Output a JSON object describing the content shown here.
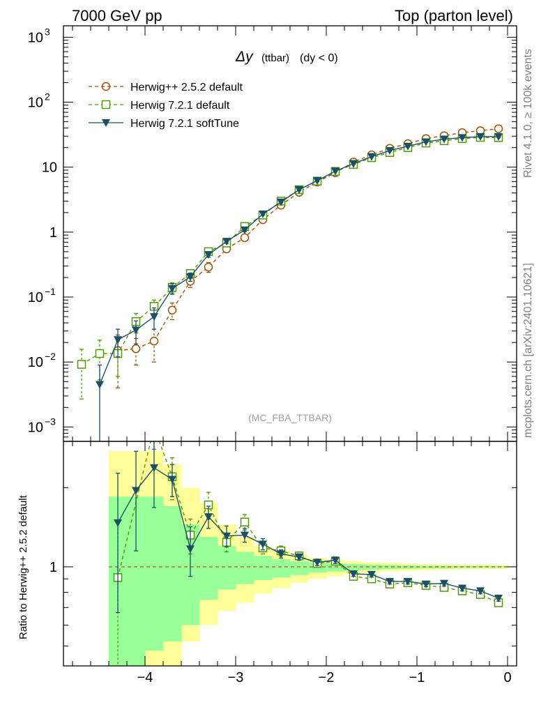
{
  "header": {
    "left": "7000 GeV pp",
    "right": "Top (parton level)"
  },
  "side_labels": {
    "rivet": "Rivet 4.1.0, ≥ 100k events",
    "mcplots": "mcplots.cern.ch [arXiv:2401.10621]"
  },
  "chart_data": [
    {
      "type": "line",
      "title": "Δy",
      "title_suffix": "(ttbar)",
      "subtitle": "(dy < 0)",
      "annotation": "(MC_FBA_TTBAR)",
      "yscale": "log",
      "ylim": [
        0.0006,
        1500
      ],
      "xlim": [
        -4.9,
        0.1
      ],
      "yticks": [
        {
          "v": 0.001,
          "base": "10",
          "exp": "−3"
        },
        {
          "v": 0.01,
          "base": "10",
          "exp": "−2"
        },
        {
          "v": 0.1,
          "base": "10",
          "exp": "−1"
        },
        {
          "v": 1,
          "base": "1",
          "exp": ""
        },
        {
          "v": 10,
          "base": "10",
          "exp": ""
        },
        {
          "v": 100,
          "base": "10",
          "exp": "2"
        },
        {
          "v": 1000,
          "base": "10",
          "exp": "3"
        }
      ],
      "legend_position": "top-left",
      "series": [
        {
          "name": "Herwig++ 2.5.2 default",
          "color": "#a64d00",
          "marker": "circle-open",
          "dash": true,
          "points": [
            [
              -4.3,
              0.015
            ],
            [
              -4.1,
              0.016
            ],
            [
              -3.9,
              0.021
            ],
            [
              -3.7,
              0.063
            ],
            [
              -3.5,
              0.175
            ],
            [
              -3.3,
              0.29
            ],
            [
              -3.1,
              0.55
            ],
            [
              -2.9,
              0.82
            ],
            [
              -2.7,
              1.55
            ],
            [
              -2.5,
              2.6
            ],
            [
              -2.3,
              4.1
            ],
            [
              -2.1,
              5.9
            ],
            [
              -1.9,
              8.2
            ],
            [
              -1.7,
              12.0
            ],
            [
              -1.5,
              15.5
            ],
            [
              -1.3,
              19.5
            ],
            [
              -1.1,
              23.0
            ],
            [
              -0.9,
              27.5
            ],
            [
              -0.7,
              30.5
            ],
            [
              -0.5,
              34.0
            ],
            [
              -0.3,
              36.5
            ],
            [
              -0.1,
              39.0
            ]
          ],
          "err": [
            0.011,
            0.007,
            0.011,
            0.018,
            0.035,
            0.05,
            0.06,
            0.07,
            0.1,
            0.15,
            0.2,
            0.25,
            0.3,
            0.35,
            0.4,
            0.45,
            0.5,
            0.55,
            0.6,
            0.65,
            0.7,
            0.75
          ]
        },
        {
          "name": "Herwig 7.2.1 default",
          "color": "#4c9a00",
          "marker": "square-open",
          "dash": true,
          "points": [
            [
              -4.7,
              0.0092
            ],
            [
              -4.5,
              0.0135
            ],
            [
              -4.3,
              0.0135
            ],
            [
              -4.1,
              0.042
            ],
            [
              -3.9,
              0.072
            ],
            [
              -3.7,
              0.14
            ],
            [
              -3.5,
              0.23
            ],
            [
              -3.3,
              0.5
            ],
            [
              -3.1,
              0.68
            ],
            [
              -2.9,
              1.22
            ],
            [
              -2.7,
              1.83
            ],
            [
              -2.5,
              3.0
            ],
            [
              -2.3,
              4.5
            ],
            [
              -2.1,
              6.1
            ],
            [
              -1.9,
              8.6
            ],
            [
              -1.7,
              11.0
            ],
            [
              -1.5,
              14.0
            ],
            [
              -1.3,
              16.8
            ],
            [
              -1.1,
              20.0
            ],
            [
              -0.9,
              23.5
            ],
            [
              -0.7,
              25.5
            ],
            [
              -0.5,
              27.5
            ],
            [
              -0.3,
              28.7
            ],
            [
              -0.1,
              28.5
            ]
          ],
          "err": [
            0.0065,
            0.0082,
            0.0075,
            0.014,
            0.018,
            0.025,
            0.03,
            0.04,
            0.05,
            0.06,
            0.08,
            0.1,
            0.15,
            0.2,
            0.25,
            0.3,
            0.35,
            0.4,
            0.45,
            0.5,
            0.55,
            0.6,
            0.65,
            0.7
          ]
        },
        {
          "name": "Herwig 7.2.1 softTune",
          "color": "#1a4f66",
          "marker": "triangle-down",
          "dash": false,
          "points": [
            [
              -4.5,
              0.0045
            ],
            [
              -4.3,
              0.022
            ],
            [
              -4.1,
              0.031
            ],
            [
              -3.9,
              0.05
            ],
            [
              -3.7,
              0.135
            ],
            [
              -3.5,
              0.205
            ],
            [
              -3.3,
              0.45
            ],
            [
              -3.1,
              0.72
            ],
            [
              -2.9,
              1.08
            ],
            [
              -2.7,
              1.9
            ],
            [
              -2.5,
              2.9
            ],
            [
              -2.3,
              4.5
            ],
            [
              -2.1,
              6.2
            ],
            [
              -1.9,
              8.7
            ],
            [
              -1.7,
              11.3
            ],
            [
              -1.5,
              14.5
            ],
            [
              -1.3,
              18.0
            ],
            [
              -1.1,
              21.0
            ],
            [
              -0.9,
              24.5
            ],
            [
              -0.7,
              27.0
            ],
            [
              -0.5,
              28.5
            ],
            [
              -0.3,
              29.5
            ],
            [
              -0.1,
              29.5
            ]
          ],
          "err": [
            0.0045,
            0.01,
            0.012,
            0.018,
            0.025,
            0.03,
            0.04,
            0.05,
            0.06,
            0.08,
            0.1,
            0.15,
            0.2,
            0.25,
            0.3,
            0.35,
            0.4,
            0.45,
            0.5,
            0.55,
            0.6,
            0.65,
            0.7
          ]
        }
      ]
    },
    {
      "type": "line",
      "ylabel": "Ratio to Herwig++ 2.5.2 default",
      "yscale": "log",
      "ylim": [
        0.42,
        3.0
      ],
      "xlim": [
        -4.9,
        0.1
      ],
      "ytick_label": "1",
      "xticks": [
        {
          "v": -4,
          "label": "−4"
        },
        {
          "v": -3,
          "label": "−3"
        },
        {
          "v": -2,
          "label": "−2"
        },
        {
          "v": -1,
          "label": "−1"
        },
        {
          "v": 0,
          "label": "0"
        }
      ],
      "bands": {
        "green_color": "#99ff99",
        "yellow_color": "#ffff99",
        "x_edges": [
          -4.4,
          -4.2,
          -4.0,
          -3.8,
          -3.6,
          -3.4,
          -3.2,
          -3.0,
          -2.8,
          -2.6,
          -2.4,
          -2.2,
          -2.0,
          -1.8,
          -1.6,
          -1.4,
          -1.2,
          -1.0,
          -0.8,
          -0.6,
          -0.4,
          -0.2,
          0.0
        ],
        "green": [
          [
            0.42,
            1.85
          ],
          [
            0.42,
            1.85
          ],
          [
            0.48,
            1.85
          ],
          [
            0.52,
            1.7
          ],
          [
            0.6,
            1.45
          ],
          [
            0.75,
            1.3
          ],
          [
            0.82,
            1.2
          ],
          [
            0.86,
            1.14
          ],
          [
            0.89,
            1.1
          ],
          [
            0.91,
            1.07
          ],
          [
            0.93,
            1.05
          ],
          [
            0.95,
            1.04
          ],
          [
            0.96,
            1.03
          ],
          [
            0.97,
            1.025
          ],
          [
            0.975,
            1.02
          ],
          [
            0.98,
            1.015
          ],
          [
            0.983,
            1.012
          ],
          [
            0.986,
            1.01
          ],
          [
            0.988,
            1.01
          ],
          [
            0.99,
            1.008
          ],
          [
            0.991,
            1.008
          ],
          [
            0.992,
            1.007
          ]
        ],
        "yellow": [
          [
            0.42,
            2.75
          ],
          [
            0.42,
            2.75
          ],
          [
            0.42,
            2.75
          ],
          [
            0.42,
            2.45
          ],
          [
            0.52,
            2.0
          ],
          [
            0.6,
            1.75
          ],
          [
            0.68,
            1.45
          ],
          [
            0.73,
            1.3
          ],
          [
            0.79,
            1.2
          ],
          [
            0.83,
            1.15
          ],
          [
            0.87,
            1.11
          ],
          [
            0.9,
            1.08
          ],
          [
            0.92,
            1.06
          ],
          [
            0.94,
            1.05
          ],
          [
            0.95,
            1.04
          ],
          [
            0.96,
            1.035
          ],
          [
            0.965,
            1.03
          ],
          [
            0.97,
            1.025
          ],
          [
            0.975,
            1.022
          ],
          [
            0.978,
            1.02
          ],
          [
            0.98,
            1.018
          ],
          [
            0.982,
            1.016
          ]
        ]
      },
      "series": [
        {
          "name": "Herwig 7.2.1 default",
          "color": "#4c9a00",
          "marker": "square-open",
          "dash": true,
          "points": [
            [
              -4.3,
              0.91
            ],
            [
              -3.9,
              3.4
            ],
            [
              -3.7,
              2.2
            ],
            [
              -3.5,
              1.32
            ],
            [
              -3.3,
              1.72
            ],
            [
              -3.1,
              1.24
            ],
            [
              -2.9,
              1.48
            ],
            [
              -2.7,
              1.18
            ],
            [
              -2.5,
              1.15
            ],
            [
              -2.3,
              1.1
            ],
            [
              -2.1,
              1.03
            ],
            [
              -1.9,
              1.05
            ],
            [
              -1.7,
              0.92
            ],
            [
              -1.5,
              0.9
            ],
            [
              -1.3,
              0.86
            ],
            [
              -1.1,
              0.87
            ],
            [
              -0.9,
              0.85
            ],
            [
              -0.7,
              0.835
            ],
            [
              -0.5,
              0.81
            ],
            [
              -0.3,
              0.785
            ],
            [
              -0.1,
              0.73
            ]
          ],
          "err": [
            0.6,
            0.6,
            0.4,
            0.2,
            0.2,
            0.1,
            0.1,
            0.06,
            0.05,
            0.04,
            0.03,
            0.03,
            0.03,
            0.02,
            0.02,
            0.02,
            0.02,
            0.02,
            0.02,
            0.02,
            0.02
          ]
        },
        {
          "name": "Herwig 7.2.1 softTune",
          "color": "#1a4f66",
          "marker": "triangle-down",
          "dash": false,
          "points": [
            [
              -4.3,
              1.47
            ],
            [
              -4.1,
              1.95
            ],
            [
              -3.9,
              2.38
            ],
            [
              -3.7,
              2.15
            ],
            [
              -3.5,
              1.17
            ],
            [
              -3.3,
              1.55
            ],
            [
              -3.1,
              1.31
            ],
            [
              -2.9,
              1.32
            ],
            [
              -2.7,
              1.22
            ],
            [
              -2.5,
              1.12
            ],
            [
              -2.3,
              1.09
            ],
            [
              -2.1,
              1.04
            ],
            [
              -1.9,
              1.06
            ],
            [
              -1.7,
              0.94
            ],
            [
              -1.5,
              0.935
            ],
            [
              -1.3,
              0.88
            ],
            [
              -1.1,
              0.88
            ],
            [
              -0.9,
              0.86
            ],
            [
              -0.7,
              0.865
            ],
            [
              -0.5,
              0.83
            ],
            [
              -0.3,
              0.81
            ],
            [
              -0.1,
              0.76
            ]
          ],
          "err": [
            0.8,
            0.8,
            0.7,
            0.3,
            0.25,
            0.15,
            0.12,
            0.08,
            0.06,
            0.04,
            0.03,
            0.03,
            0.03,
            0.02,
            0.02,
            0.02,
            0.02,
            0.02,
            0.02,
            0.02,
            0.02,
            0.02
          ]
        }
      ]
    }
  ]
}
